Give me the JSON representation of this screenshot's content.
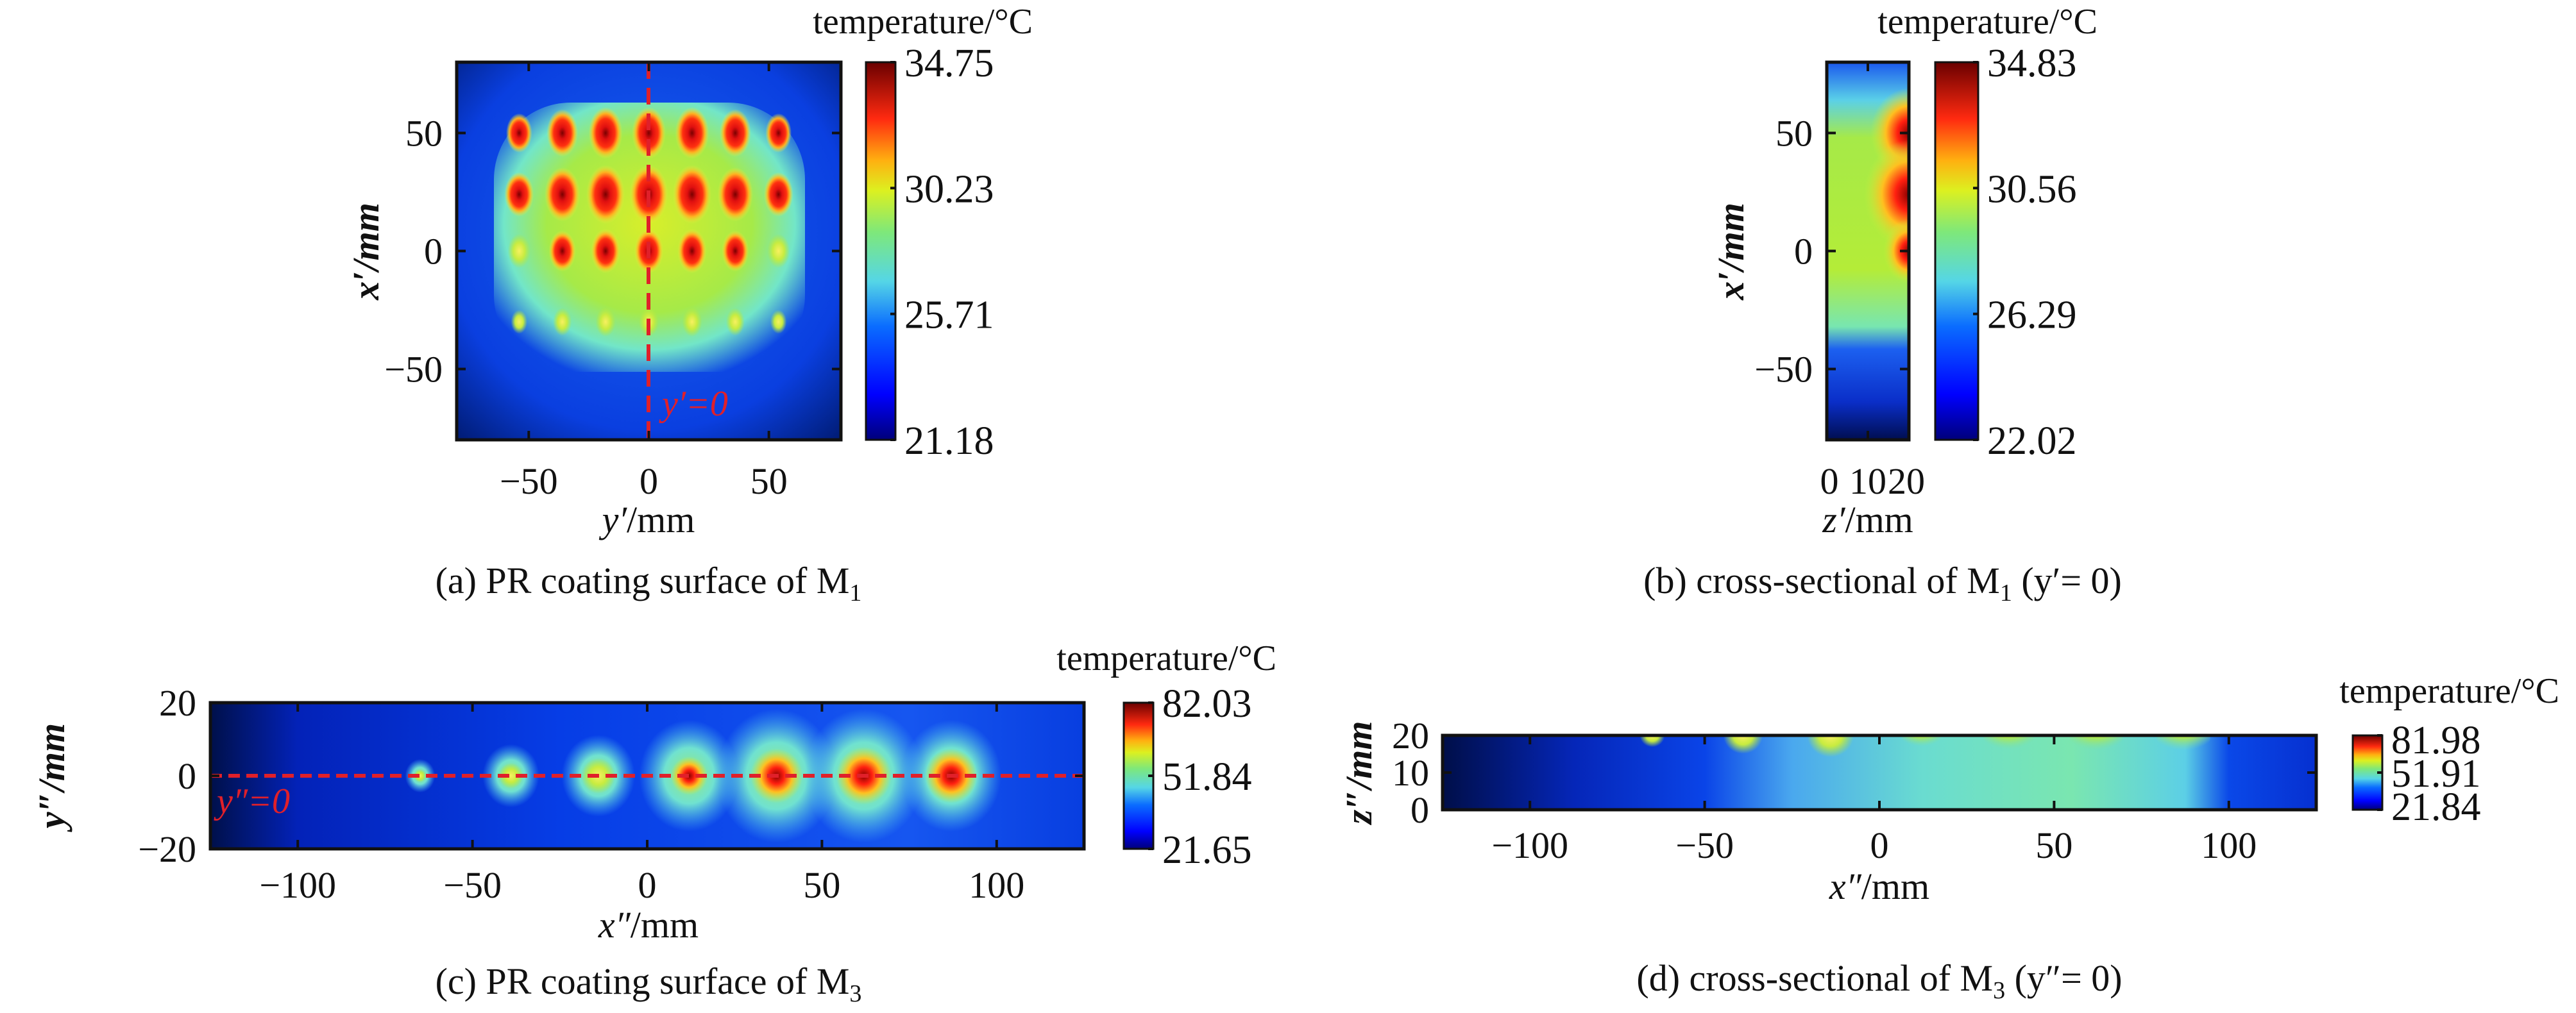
{
  "chart_data": [
    {
      "type": "heatmap",
      "id": "a",
      "caption": "(a) PR coating surface of M",
      "caption_sub": "1",
      "xlabel_var": "y′",
      "xlabel_unit": "/mm",
      "ylabel": "x′/mm",
      "xlim": [
        -80,
        80
      ],
      "ylim": [
        -80,
        80
      ],
      "xticks": [
        -50,
        0,
        50
      ],
      "xtick_labels": [
        "−50",
        "0",
        "50"
      ],
      "yticks": [
        50,
        0,
        -50
      ],
      "ytick_labels": [
        "50",
        "0",
        "−50"
      ],
      "colorbar": {
        "title": "temperature/°C",
        "min": 21.18,
        "max": 34.75,
        "tick_labels": [
          "34.75",
          "30.23",
          "25.71",
          "21.18"
        ],
        "colormap": "jet"
      },
      "annotation": {
        "text": "y′=0",
        "line": "y′ = 0",
        "color": "#e0202a"
      },
      "hot_spots": {
        "columns_x": [
          -54,
          -36,
          -18,
          0,
          18,
          36,
          54
        ],
        "rows_y": [
          50,
          24,
          0,
          -30
        ]
      }
    },
    {
      "type": "heatmap",
      "id": "b",
      "caption": "(b) cross-sectional of M",
      "caption_sub": "1",
      "caption_tail": " (y′= 0)",
      "xlabel_var": "z′",
      "xlabel_unit": "/mm",
      "ylabel": "x′/mm",
      "xlim": [
        0,
        20
      ],
      "ylim": [
        -80,
        80
      ],
      "xticks": [
        0,
        10,
        20
      ],
      "xtick_labels": [
        "0",
        "10",
        "20"
      ],
      "yticks": [
        50,
        0,
        -50
      ],
      "ytick_labels": [
        "50",
        "0",
        "−50"
      ],
      "colorbar": {
        "title": "temperature/°C",
        "min": 22.02,
        "max": 34.83,
        "tick_labels": [
          "34.83",
          "30.56",
          "26.29",
          "22.02"
        ],
        "colormap": "jet"
      },
      "hot_spots": {
        "at_z": 20,
        "rows_y": [
          50,
          24,
          0
        ]
      }
    },
    {
      "type": "heatmap",
      "id": "c",
      "caption": "(c) PR coating surface of M",
      "caption_sub": "3",
      "xlabel_var": "x″",
      "xlabel_unit": "/mm",
      "ylabel": "y″/mm",
      "xlim": [
        -125,
        125
      ],
      "ylim": [
        -20,
        20
      ],
      "xticks": [
        -100,
        -50,
        0,
        50,
        100
      ],
      "xtick_labels": [
        "−100",
        "−50",
        "0",
        "50",
        "100"
      ],
      "yticks": [
        20,
        0,
        -20
      ],
      "ytick_labels": [
        "20",
        "0",
        "−20"
      ],
      "colorbar": {
        "title": "temperature/°C",
        "min": 21.65,
        "max": 82.03,
        "tick_labels": [
          "82.03",
          "51.84",
          "21.65"
        ],
        "colormap": "jet"
      },
      "annotation": {
        "text": "y″=0",
        "line": "y″ = 0",
        "color": "#e0202a"
      },
      "hot_spots": {
        "columns_x": [
          -65,
          -39,
          -14,
          12,
          37,
          62,
          87
        ],
        "row_y": 0
      }
    },
    {
      "type": "heatmap",
      "id": "d",
      "caption": "(d) cross-sectional of M",
      "caption_sub": "3",
      "caption_tail": " (y″= 0)",
      "xlabel_var": "x″",
      "xlabel_unit": "/mm",
      "ylabel": "z″/mm",
      "xlim": [
        -125,
        125
      ],
      "ylim": [
        0,
        20
      ],
      "xticks": [
        -100,
        -50,
        0,
        50,
        100
      ],
      "xtick_labels": [
        "−100",
        "−50",
        "0",
        "50",
        "100"
      ],
      "yticks": [
        20,
        10,
        0
      ],
      "ytick_labels": [
        "20",
        "10",
        "0"
      ],
      "colorbar": {
        "title": "temperature/°C",
        "min": 21.84,
        "max": 81.98,
        "tick_labels": [
          "81.98",
          "51.91",
          "21.84"
        ],
        "colormap": "jet"
      },
      "hot_spots": {
        "columns_x": [
          -65,
          -39,
          -14,
          12,
          37,
          62,
          87
        ],
        "at_z": 20
      }
    }
  ]
}
